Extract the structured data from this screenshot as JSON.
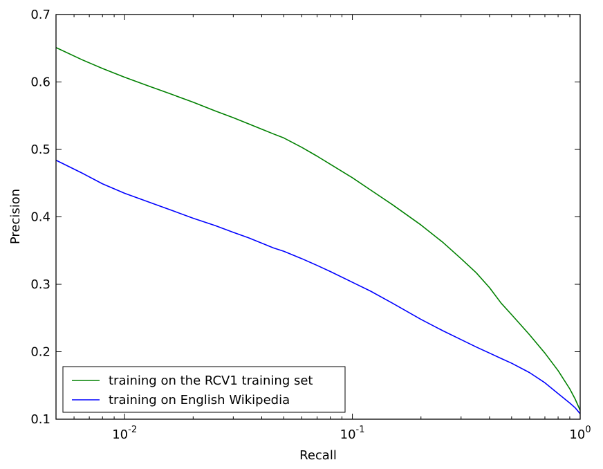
{
  "chart_data": {
    "type": "line",
    "xscale": "log",
    "xlabel": "Recall",
    "ylabel": "Precision",
    "xlim": [
      0.005,
      1
    ],
    "ylim": [
      0.1,
      0.7
    ],
    "x_ticks": [
      {
        "value": 0.01,
        "base": "10",
        "exp": "-2"
      },
      {
        "value": 0.1,
        "base": "10",
        "exp": "-1"
      },
      {
        "value": 1,
        "base": "10",
        "exp": "0"
      }
    ],
    "y_ticks": [
      {
        "value": 0.1,
        "label": "0.1"
      },
      {
        "value": 0.2,
        "label": "0.2"
      },
      {
        "value": 0.3,
        "label": "0.3"
      },
      {
        "value": 0.4,
        "label": "0.4"
      },
      {
        "value": 0.5,
        "label": "0.5"
      },
      {
        "value": 0.6,
        "label": "0.6"
      },
      {
        "value": 0.7,
        "label": "0.7"
      }
    ],
    "grid": false,
    "legend_position": "lower-left",
    "series": [
      {
        "name": "training on the RCV1 training set",
        "color": "#008000",
        "x": [
          0.005,
          0.0065,
          0.008,
          0.01,
          0.013,
          0.016,
          0.02,
          0.025,
          0.03,
          0.035,
          0.04,
          0.045,
          0.05,
          0.06,
          0.07,
          0.08,
          0.1,
          0.12,
          0.15,
          0.2,
          0.25,
          0.3,
          0.35,
          0.4,
          0.45,
          0.5,
          0.6,
          0.7,
          0.8,
          0.9,
          0.95,
          1.0
        ],
        "y": [
          0.651,
          0.633,
          0.62,
          0.607,
          0.593,
          0.582,
          0.57,
          0.557,
          0.547,
          0.538,
          0.53,
          0.523,
          0.517,
          0.503,
          0.49,
          0.478,
          0.458,
          0.44,
          0.418,
          0.388,
          0.362,
          0.338,
          0.317,
          0.295,
          0.272,
          0.255,
          0.225,
          0.198,
          0.172,
          0.145,
          0.13,
          0.113
        ]
      },
      {
        "name": "training on English Wikipedia",
        "color": "#0000ff",
        "x": [
          0.005,
          0.0065,
          0.008,
          0.01,
          0.013,
          0.016,
          0.02,
          0.025,
          0.03,
          0.035,
          0.04,
          0.045,
          0.05,
          0.06,
          0.07,
          0.08,
          0.1,
          0.12,
          0.15,
          0.2,
          0.25,
          0.3,
          0.35,
          0.4,
          0.45,
          0.5,
          0.6,
          0.7,
          0.8,
          0.9,
          0.95,
          1.0
        ],
        "y": [
          0.484,
          0.465,
          0.449,
          0.435,
          0.421,
          0.41,
          0.398,
          0.387,
          0.377,
          0.369,
          0.361,
          0.354,
          0.349,
          0.338,
          0.328,
          0.319,
          0.303,
          0.29,
          0.272,
          0.248,
          0.231,
          0.218,
          0.207,
          0.198,
          0.19,
          0.183,
          0.169,
          0.154,
          0.138,
          0.124,
          0.117,
          0.108
        ]
      }
    ]
  }
}
